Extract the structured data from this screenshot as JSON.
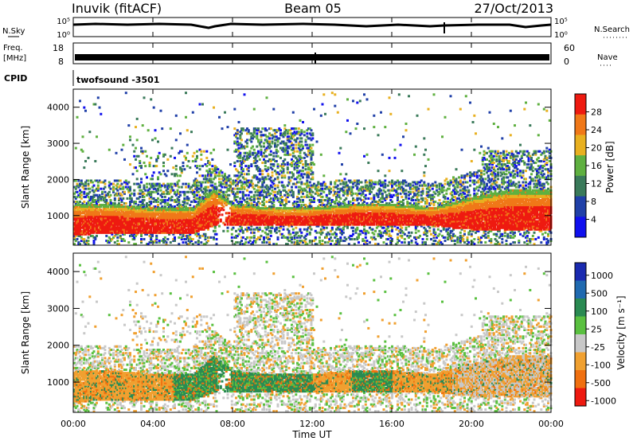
{
  "header": {
    "station": "Inuvik (fitACF)",
    "beam": "Beam 05",
    "date": "27/Oct/2013"
  },
  "panels": {
    "nsky_label": "N.Sky",
    "nsearch_label": "N.Search",
    "freq_label_line1": "Freq.",
    "freq_label_line2": "[MHz]",
    "nave_label": "Nave",
    "cpid_label": "CPID",
    "cpid_value": "twofsound  -3501",
    "noise_ticks_left": [
      "10^5",
      "10^0"
    ],
    "noise_ticks_right": [
      "10^5",
      "10^0"
    ],
    "freq_ticks": [
      "18",
      "8"
    ],
    "nave_ticks": [
      "60",
      "0"
    ]
  },
  "chart_data": [
    {
      "type": "heatmap",
      "panel": "power",
      "ylabel": "Slant Range [km]",
      "xlabel": "",
      "colorbar_label": "Power [dB]",
      "colorbar_ticks": [
        4,
        8,
        12,
        16,
        20,
        24,
        28
      ],
      "colorbar_range": [
        0,
        32
      ],
      "colors": [
        "#1010ee",
        "#2040a8",
        "#3a7a5a",
        "#5fb040",
        "#e8b020",
        "#f07818",
        "#ee1a10"
      ],
      "ylim": [
        180,
        4500
      ],
      "yticks": [
        1000,
        2000,
        3000,
        4000
      ],
      "xlim": [
        0,
        24
      ],
      "xticks": [
        "00:00",
        "04:00",
        "08:00",
        "12:00",
        "16:00",
        "20:00",
        "00:00"
      ],
      "series": [
        {
          "band": "ionospheric backscatter",
          "hours": [
            0,
            2,
            4,
            6,
            7,
            8,
            10,
            12,
            14,
            16,
            18,
            20,
            22,
            24
          ],
          "range_low_km": [
            450,
            500,
            500,
            500,
            700,
            700,
            700,
            700,
            700,
            700,
            700,
            600,
            600,
            600
          ],
          "range_high_km": [
            1300,
            1300,
            1200,
            1200,
            1700,
            1300,
            1200,
            1200,
            1300,
            1300,
            1200,
            1500,
            1700,
            1700
          ]
        }
      ]
    },
    {
      "type": "heatmap",
      "panel": "velocity",
      "ylabel": "Slant Range [km]",
      "xlabel": "Time UT",
      "colorbar_label": "Velocity [m s^-1]",
      "colorbar_ticks": [
        "1000",
        "500",
        "100",
        "25",
        "-25",
        "-100",
        "-500",
        "-1000"
      ],
      "colors": [
        "#1a2ab0",
        "#206ab0",
        "#2a8a52",
        "#5ac040",
        "#c8c8c8",
        "#f0a030",
        "#f07010",
        "#ee1a10"
      ],
      "ylim": [
        180,
        4500
      ],
      "yticks": [
        1000,
        2000,
        3000,
        4000
      ],
      "xlim": [
        0,
        24
      ],
      "xticks": [
        "00:00",
        "04:00",
        "08:00",
        "12:00",
        "16:00",
        "20:00",
        "00:00"
      ]
    }
  ]
}
